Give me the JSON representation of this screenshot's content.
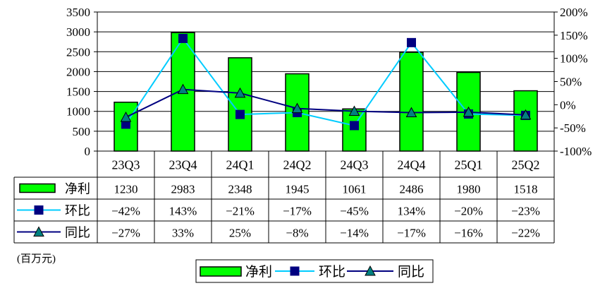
{
  "chart_data": {
    "type": "bar",
    "categories": [
      "23Q3",
      "23Q4",
      "24Q1",
      "24Q2",
      "24Q3",
      "24Q4",
      "25Q1",
      "25Q2"
    ],
    "series": [
      {
        "name": "净利",
        "type": "bar",
        "axis": "left",
        "values": [
          1230,
          2983,
          2348,
          1945,
          1061,
          2486,
          1980,
          1518
        ],
        "labels": [
          "1230",
          "2983",
          "2348",
          "1945",
          "1061",
          "2486",
          "1980",
          "1518"
        ],
        "color": "#00ff00"
      },
      {
        "name": "环比",
        "type": "line",
        "axis": "right",
        "marker": "square",
        "values": [
          -42,
          143,
          -21,
          -17,
          -45,
          134,
          -20,
          -23
        ],
        "labels": [
          "−42%",
          "143%",
          "−21%",
          "−17%",
          "−45%",
          "134%",
          "−20%",
          "−23%"
        ],
        "color": "#00ccff"
      },
      {
        "name": "同比",
        "type": "line",
        "axis": "right",
        "marker": "triangle",
        "values": [
          -27,
          33,
          25,
          -8,
          -14,
          -17,
          -16,
          -22
        ],
        "labels": [
          "−27%",
          "33%",
          "25%",
          "−8%",
          "−14%",
          "−17%",
          "−16%",
          "−22%"
        ],
        "color": "#000080"
      }
    ],
    "y_left": {
      "min": 0,
      "max": 3500,
      "step": 500,
      "ticks": [
        "0",
        "500",
        "1000",
        "1500",
        "2000",
        "2500",
        "3000",
        "3500"
      ]
    },
    "y_right": {
      "min": -100,
      "max": 200,
      "step": 50,
      "ticks": [
        "-100%",
        "-50%",
        "0%",
        "50%",
        "100%",
        "150%",
        "200%"
      ]
    },
    "unit": "(百万元)",
    "gridlines": "horizontal",
    "legend": "bottom-center",
    "data_table": true
  }
}
